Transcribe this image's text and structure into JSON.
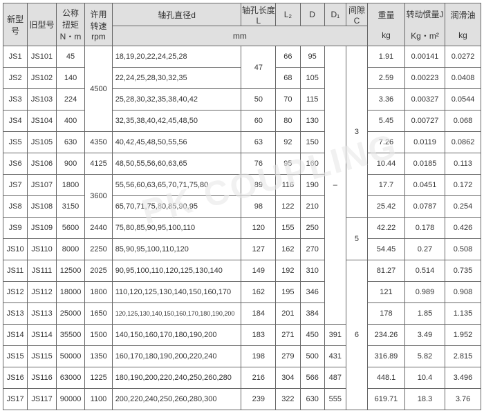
{
  "header": {
    "newModel": "新型号",
    "oldModel": "旧型号",
    "torque_l1": "公称",
    "torque_l2": "扭矩",
    "torque_l3": "N・m",
    "speed_l1": "许用",
    "speed_l2": "转速",
    "speed_l3": "rpm",
    "boreDia": "轴孔直径d",
    "boreLen": "轴孔长度L",
    "L2": "L₂",
    "D": "D",
    "D1": "D₁",
    "gap_l1": "间隙",
    "gap_l2": "C",
    "mm": "mm",
    "weight_l1": "重量",
    "weight_unit": "kg",
    "inertia_l1": "转动惯量J",
    "inertia_unit": "Kg・m²",
    "oil_l1": "润滑油",
    "oil_unit": "kg"
  },
  "rows": [
    {
      "n": "JS1",
      "o": "JS101",
      "t": "45",
      "s": "",
      "d": "18,19,20,22,24,25,28",
      "L": "",
      "L2": "66",
      "D": "95",
      "D1": "",
      "C": "",
      "w": "1.91",
      "j": "0.00141",
      "oil": "0.0272"
    },
    {
      "n": "JS2",
      "o": "JS102",
      "t": "140",
      "s": "",
      "d": "22,24,25,28,30,32,35",
      "L": "",
      "L2": "68",
      "D": "105",
      "D1": "",
      "C": "",
      "w": "2.59",
      "j": "0.00223",
      "oil": "0.0408"
    },
    {
      "n": "JS3",
      "o": "JS103",
      "t": "224",
      "s": "",
      "d": "25,28,30,32,35,38,40,42",
      "L": "50",
      "L2": "70",
      "D": "115",
      "D1": "",
      "C": "",
      "w": "3.36",
      "j": "0.00327",
      "oil": "0.0544"
    },
    {
      "n": "JS4",
      "o": "JS104",
      "t": "400",
      "s": "",
      "d": "32,35,38,40,42,45,48,50",
      "L": "60",
      "L2": "80",
      "D": "130",
      "D1": "",
      "C": "",
      "w": "5.45",
      "j": "0.00727",
      "oil": "0.068"
    },
    {
      "n": "JS5",
      "o": "JS105",
      "t": "630",
      "s": "4350",
      "d": "40,42,45,48,50,55,56",
      "L": "63",
      "L2": "92",
      "D": "150",
      "D1": "",
      "C": "",
      "w": "7.26",
      "j": "0.0119",
      "oil": "0.0862"
    },
    {
      "n": "JS6",
      "o": "JS106",
      "t": "900",
      "s": "4125",
      "d": "48,50,55,56,60,63,65",
      "L": "76",
      "L2": "95",
      "D": "160",
      "D1": "",
      "C": "",
      "w": "10.44",
      "j": "0.0185",
      "oil": "0.113"
    },
    {
      "n": "JS7",
      "o": "JS107",
      "t": "1800",
      "s": "",
      "d": "55,56,60,63,65,70,71,75,80",
      "L": "89",
      "L2": "116",
      "D": "190",
      "D1": "",
      "C": "",
      "w": "17.7",
      "j": "0.0451",
      "oil": "0.172"
    },
    {
      "n": "JS8",
      "o": "JS108",
      "t": "3150",
      "s": "",
      "d": "65,70,71,75,80,85,90,95",
      "L": "98",
      "L2": "122",
      "D": "210",
      "D1": "",
      "C": "",
      "w": "25.42",
      "j": "0.0787",
      "oil": "0.254"
    },
    {
      "n": "JS9",
      "o": "JS109",
      "t": "5600",
      "s": "2440",
      "d": "75,80,85,90,95,100,110",
      "L": "120",
      "L2": "155",
      "D": "250",
      "D1": "",
      "C": "",
      "w": "42.22",
      "j": "0.178",
      "oil": "0.426"
    },
    {
      "n": "JS10",
      "o": "JS110",
      "t": "8000",
      "s": "2250",
      "d": "85,90,95,100,110,120",
      "L": "127",
      "L2": "162",
      "D": "270",
      "D1": "",
      "C": "",
      "w": "54.45",
      "j": "0.27",
      "oil": "0.508"
    },
    {
      "n": "JS11",
      "o": "JS111",
      "t": "12500",
      "s": "2025",
      "d": "90,95,100,110,120,125,130,140",
      "L": "149",
      "L2": "192",
      "D": "310",
      "D1": "",
      "C": "",
      "w": "81.27",
      "j": "0.514",
      "oil": "0.735"
    },
    {
      "n": "JS12",
      "o": "JS112",
      "t": "18000",
      "s": "1800",
      "d": "110,120,125,130,140,150,160,170",
      "L": "162",
      "L2": "195",
      "D": "346",
      "D1": "",
      "C": "",
      "w": "121",
      "j": "0.989",
      "oil": "0.908"
    },
    {
      "n": "JS13",
      "o": "JS113",
      "t": "25000",
      "s": "1650",
      "d": "120,125,130,140,150,160,170,180,190,200",
      "L": "184",
      "L2": "201",
      "D": "384",
      "D1": "",
      "C": "",
      "w": "178",
      "j": "1.85",
      "oil": "1.135"
    },
    {
      "n": "JS14",
      "o": "JS114",
      "t": "35500",
      "s": "1500",
      "d": "140,150,160,170,180,190,200",
      "L": "183",
      "L2": "271",
      "D": "450",
      "D1": "391",
      "C": "",
      "w": "234.26",
      "j": "3.49",
      "oil": "1.952"
    },
    {
      "n": "JS15",
      "o": "JS115",
      "t": "50000",
      "s": "1350",
      "d": "160,170,180,190,200,220,240",
      "L": "198",
      "L2": "279",
      "D": "500",
      "D1": "431",
      "C": "",
      "w": "316.89",
      "j": "5.82",
      "oil": "2.815"
    },
    {
      "n": "JS16",
      "o": "JS116",
      "t": "63000",
      "s": "1225",
      "d": "180,190,200,220,240,250,260,280",
      "L": "216",
      "L2": "304",
      "D": "566",
      "D1": "487",
      "C": "",
      "w": "448.1",
      "j": "10.4",
      "oil": "3.496"
    },
    {
      "n": "JS17",
      "o": "JS117",
      "t": "90000",
      "s": "1100",
      "d": "200,220,240,250,260,280,300",
      "L": "239",
      "L2": "322",
      "D": "630",
      "D1": "555",
      "C": "",
      "w": "619.71",
      "j": "18.3",
      "oil": "3.76"
    }
  ],
  "spans": {
    "speed_4500": "4500",
    "speed_3600": "3600",
    "L_47": "47",
    "D1_dash": "–",
    "C_3": "3",
    "C_5": "5",
    "C_6": "6"
  },
  "watermark": "PK COUPLING"
}
